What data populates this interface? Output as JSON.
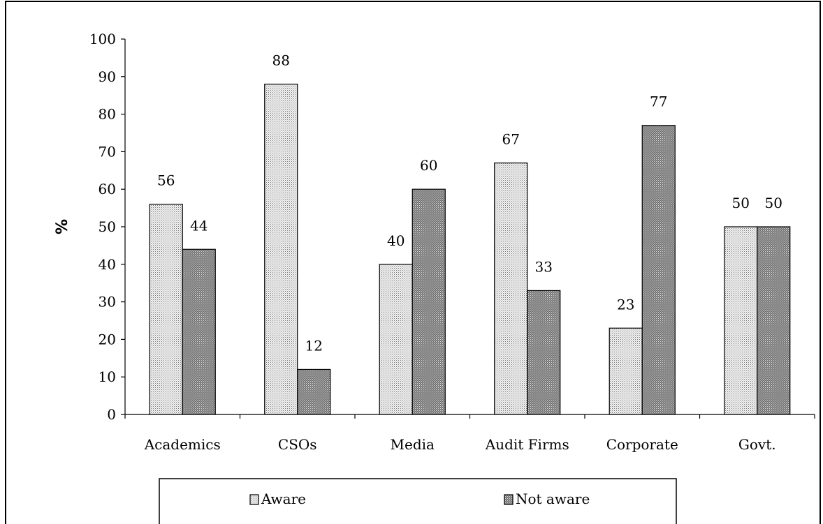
{
  "chart_data": {
    "type": "bar",
    "title": "",
    "xlabel": "",
    "ylabel": "%",
    "ylim": [
      0,
      100
    ],
    "yticks": [
      "0",
      "10",
      "20",
      "30",
      "40",
      "50",
      "60",
      "70",
      "80",
      "90",
      "100"
    ],
    "categories": [
      "Academics",
      "CSOs",
      "Media",
      "Audit Firms",
      "Corporate",
      "Govt."
    ],
    "series": [
      {
        "name": "Aware",
        "values": [
          56,
          88,
          40,
          67,
          23,
          50
        ],
        "labels": [
          "56",
          "88",
          "40",
          "67",
          "23",
          "50"
        ],
        "pattern": "light-dots"
      },
      {
        "name": "Not aware",
        "values": [
          44,
          12,
          60,
          33,
          77,
          50
        ],
        "labels": [
          "44",
          "12",
          "60",
          "33",
          "77",
          "50"
        ],
        "pattern": "dark-dots"
      }
    ],
    "grid": false,
    "legend_position": "bottom",
    "data_labels": true
  },
  "colors": {
    "axis": "#000000",
    "aware_fill": "#e8e8e8",
    "not_aware_fill": "#9a9a9a"
  }
}
